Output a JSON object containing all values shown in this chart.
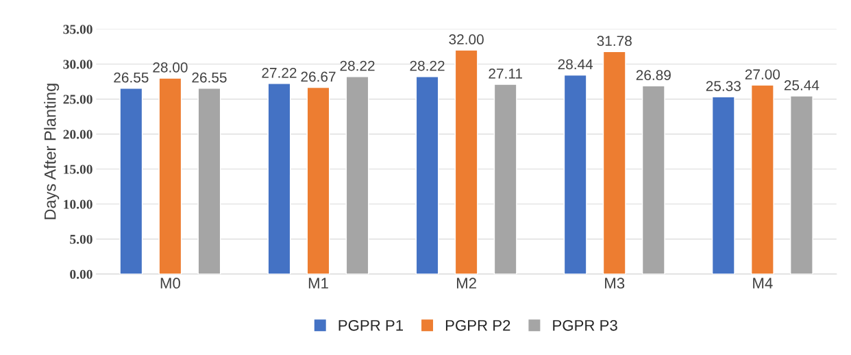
{
  "chart_data": {
    "type": "bar",
    "ylabel": "Days After Planting",
    "categories": [
      "M0",
      "M1",
      "M2",
      "M3",
      "M4"
    ],
    "series": [
      {
        "name": "PGPR P1",
        "color": "#4472c4",
        "values": [
          26.55,
          27.22,
          28.22,
          28.44,
          25.33
        ],
        "value_labels": [
          "26.55",
          "27.22",
          "28.22",
          "28.44",
          "25.33"
        ]
      },
      {
        "name": "PGPR P2",
        "color": "#ed7d31",
        "values": [
          28.0,
          26.67,
          32.0,
          31.78,
          27.0
        ],
        "value_labels": [
          "28.00",
          "26.67",
          "32.00",
          "31.78",
          "27.00"
        ]
      },
      {
        "name": "PGPR P3",
        "color": "#a5a5a5",
        "values": [
          26.55,
          28.22,
          27.11,
          26.89,
          25.44
        ],
        "value_labels": [
          "26.55",
          "28.22",
          "27.11",
          "26.89",
          "25.44"
        ]
      }
    ],
    "ylim": [
      0,
      35
    ],
    "yticks": [
      {
        "value": 0,
        "label": "0.00"
      },
      {
        "value": 5,
        "label": "5.00"
      },
      {
        "value": 10,
        "label": "10.00"
      },
      {
        "value": 15,
        "label": "15.00"
      },
      {
        "value": 20,
        "label": "20.00"
      },
      {
        "value": 25,
        "label": "25.00"
      },
      {
        "value": 30,
        "label": "30.00"
      },
      {
        "value": 35,
        "label": "35.00"
      }
    ],
    "grid": "y",
    "legend": "bottom"
  }
}
